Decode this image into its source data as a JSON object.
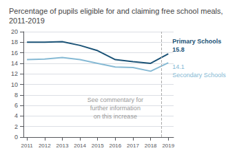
{
  "chart_data": {
    "type": "line",
    "title": "Percentage of pupils eligible for and claiming free school meals, 2011-2019",
    "x": [
      2011,
      2012,
      2013,
      2014,
      2015,
      2016,
      2017,
      2018,
      2019
    ],
    "xlim": [
      2010.8,
      2019.3
    ],
    "xticks": [
      2011,
      2012,
      2013,
      2014,
      2015,
      2016,
      2017,
      2018,
      2019
    ],
    "ylim": [
      0,
      20
    ],
    "yticks": [
      0,
      2,
      4,
      6,
      8,
      10,
      12,
      14,
      16,
      18,
      20
    ],
    "grid": true,
    "series": [
      {
        "name": "Primary Schools",
        "color": "#1a5276",
        "values": [
          18.0,
          18.0,
          18.1,
          17.4,
          16.4,
          14.7,
          14.3,
          14.0,
          15.8
        ]
      },
      {
        "name": "Secondary Schools",
        "color": "#85b9d4",
        "values": [
          14.7,
          14.8,
          15.1,
          14.7,
          14.0,
          13.3,
          13.2,
          12.5,
          14.1
        ]
      }
    ],
    "annotations": [
      {
        "text": "See commentary for\nfurther information\non this increase",
        "x": 2016.0,
        "y": 5.5
      }
    ],
    "vline_x": 2018.6
  }
}
